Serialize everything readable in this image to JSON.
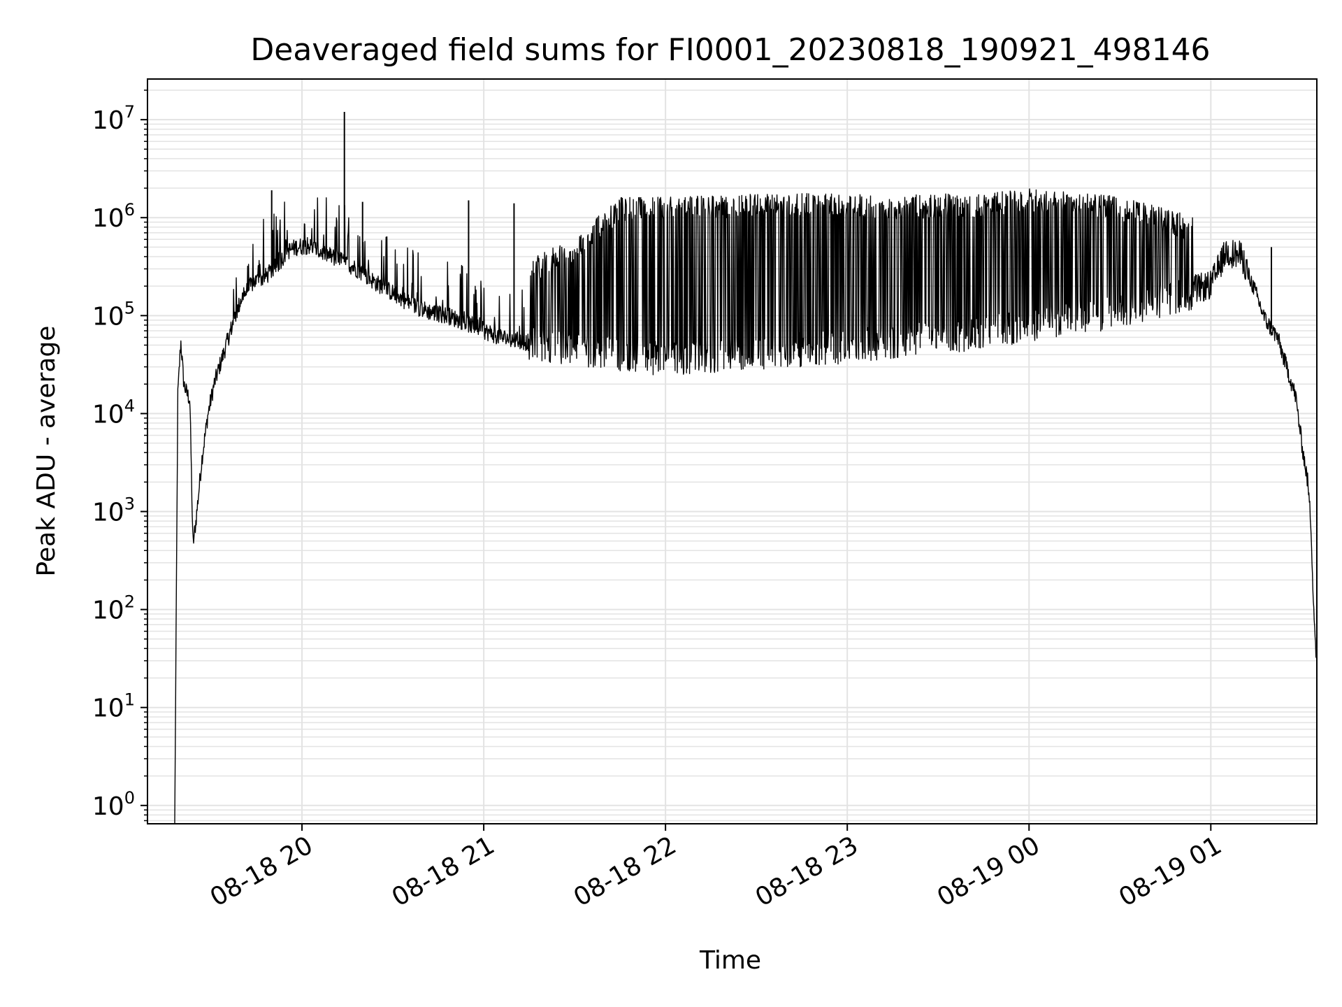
{
  "chart_data": {
    "type": "line",
    "title": "Deaveraged field sums for FI0001_20230818_190921_498146",
    "xlabel": "Time",
    "ylabel": "Peak ADU - average",
    "yscale": "log",
    "ylim": [
      0.65,
      26000000
    ],
    "xlim": [
      "2023-08-18 19:09",
      "2023-08-19 01:35"
    ],
    "grid": true,
    "line_color": "#000000",
    "grid_color": "#e3e3e3",
    "x_ticks": [
      {
        "value": "2023-08-18 20:00",
        "label": "08-18 20"
      },
      {
        "value": "2023-08-18 21:00",
        "label": "08-18 21"
      },
      {
        "value": "2023-08-18 22:00",
        "label": "08-18 22"
      },
      {
        "value": "2023-08-18 23:00",
        "label": "08-18 23"
      },
      {
        "value": "2023-08-19 00:00",
        "label": "08-19 00"
      },
      {
        "value": "2023-08-19 01:00",
        "label": "08-19 01"
      }
    ],
    "y_ticks": [
      {
        "value": 1,
        "base": "10",
        "exp": "0"
      },
      {
        "value": 10,
        "base": "10",
        "exp": "1"
      },
      {
        "value": 100,
        "base": "10",
        "exp": "2"
      },
      {
        "value": 1000,
        "base": "10",
        "exp": "3"
      },
      {
        "value": 10000,
        "base": "10",
        "exp": "4"
      },
      {
        "value": 100000,
        "base": "10",
        "exp": "5"
      },
      {
        "value": 1000000,
        "base": "10",
        "exp": "6"
      },
      {
        "value": 10000000,
        "base": "10",
        "exp": "7"
      }
    ],
    "series": [
      {
        "x": [
          "2023-08-18 19:18",
          "2023-08-18 19:19",
          "2023-08-18 19:20",
          "2023-08-18 19:21",
          "2023-08-18 19:22",
          "2023-08-18 19:23",
          "2023-08-18 19:24",
          "2023-08-18 19:25",
          "2023-08-18 19:27",
          "2023-08-18 19:29",
          "2023-08-18 19:31",
          "2023-08-18 19:34",
          "2023-08-18 19:37",
          "2023-08-18 19:40",
          "2023-08-18 19:44",
          "2023-08-18 19:48",
          "2023-08-18 19:52",
          "2023-08-18 19:55",
          "2023-08-18 19:58",
          "2023-08-18 20:02",
          "2023-08-18 20:06",
          "2023-08-18 20:10",
          "2023-08-18 20:14",
          "2023-08-18 20:18",
          "2023-08-18 20:24",
          "2023-08-18 20:30",
          "2023-08-18 20:36",
          "2023-08-18 20:42",
          "2023-08-18 20:48",
          "2023-08-18 20:54",
          "2023-08-18 21:00",
          "2023-08-18 21:06",
          "2023-08-18 21:12",
          "2023-08-18 21:20",
          "2023-08-18 21:30",
          "2023-08-18 21:40",
          "2023-08-18 21:50",
          "2023-08-18 22:00",
          "2023-08-18 22:10",
          "2023-08-18 22:20",
          "2023-08-18 22:30",
          "2023-08-18 22:40",
          "2023-08-18 22:50",
          "2023-08-18 23:00",
          "2023-08-18 23:10",
          "2023-08-18 23:20",
          "2023-08-18 23:30",
          "2023-08-18 23:40",
          "2023-08-18 23:50",
          "2023-08-19 00:00",
          "2023-08-19 00:10",
          "2023-08-19 00:20",
          "2023-08-19 00:30",
          "2023-08-19 00:40",
          "2023-08-19 00:50",
          "2023-08-19 01:00",
          "2023-08-19 01:05",
          "2023-08-19 01:10",
          "2023-08-19 01:14",
          "2023-08-19 01:18",
          "2023-08-19 01:22",
          "2023-08-19 01:25",
          "2023-08-19 01:28",
          "2023-08-19 01:30",
          "2023-08-19 01:32",
          "2023-08-19 01:33",
          "2023-08-19 01:34",
          "2023-08-19 01:35"
        ],
        "y": [
          0.65,
          15000,
          55000,
          20000,
          16000,
          14000,
          450,
          800,
          3500,
          10000,
          20000,
          40000,
          80000,
          150000,
          220000,
          250000,
          330000,
          450000,
          500000,
          520000,
          450000,
          400000,
          350000,
          300000,
          220000,
          170000,
          130000,
          110000,
          100000,
          85000,
          70000,
          60000,
          55000,
          50000,
          46000,
          42000,
          39000,
          36000,
          38000,
          40000,
          42000,
          44000,
          46000,
          48000,
          52000,
          56000,
          60000,
          65000,
          72000,
          80000,
          90000,
          100000,
          110000,
          130000,
          160000,
          190000,
          420000,
          380000,
          200000,
          90000,
          60000,
          30000,
          15000,
          5000,
          2000,
          800,
          100,
          25
        ]
      },
      {
        "x": [
          "2023-08-18 19:18",
          "2023-08-18 19:30",
          "2023-08-18 19:40",
          "2023-08-18 19:50",
          "2023-08-18 20:00",
          "2023-08-18 20:10",
          "2023-08-18 20:20",
          "2023-08-18 20:30",
          "2023-08-18 20:45",
          "2023-08-18 21:00",
          "2023-08-18 21:15",
          "2023-08-18 21:30",
          "2023-08-18 21:45",
          "2023-08-18 22:00",
          "2023-08-18 22:15",
          "2023-08-18 22:30",
          "2023-08-18 22:45",
          "2023-08-18 23:00",
          "2023-08-18 23:15",
          "2023-08-18 23:30",
          "2023-08-18 23:45",
          "2023-08-19 00:00",
          "2023-08-19 00:15",
          "2023-08-19 00:30",
          "2023-08-19 00:45",
          "2023-08-19 01:00",
          "2023-08-19 01:10",
          "2023-08-19 01:20",
          "2023-08-19 01:30"
        ],
        "y": [
          55000,
          30000,
          150000,
          280000,
          600000,
          800000,
          750000,
          650000,
          400000,
          220000,
          300000,
          500000,
          1300000,
          1300000,
          1350000,
          1400000,
          1400000,
          1400000,
          1350000,
          1400000,
          1400000,
          1600000,
          1500000,
          1300000,
          1000000,
          700000,
          600000,
          200000,
          20000
        ]
      }
    ],
    "spikes": [
      {
        "x": "2023-08-18 19:50",
        "y": 1900000
      },
      {
        "x": "2023-08-18 20:14",
        "y": 12000000
      },
      {
        "x": "2023-08-18 20:20",
        "y": 1450000
      },
      {
        "x": "2023-08-18 20:55",
        "y": 1500000
      },
      {
        "x": "2023-08-18 21:10",
        "y": 1400000
      },
      {
        "x": "2023-08-19 01:20",
        "y": 500000
      }
    ]
  }
}
